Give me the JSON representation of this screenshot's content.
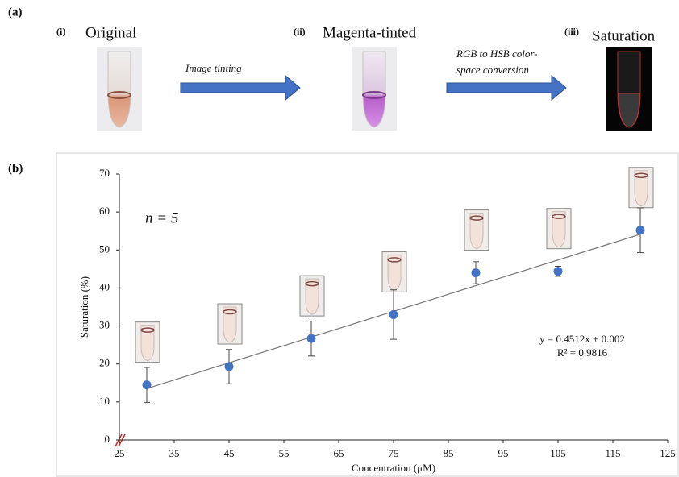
{
  "panel_a": {
    "label": "(a)",
    "steps": [
      {
        "index": "(i)",
        "title": "Original"
      },
      {
        "index": "(ii)",
        "title": "Magenta-tinted"
      },
      {
        "index": "(iii)",
        "title": "Saturation"
      }
    ],
    "arrows": [
      {
        "lines": [
          "Image tinting"
        ]
      },
      {
        "lines": [
          "RGB to HSB color-",
          "space conversion"
        ]
      }
    ]
  },
  "panel_b_label": "(b)",
  "chart_data": {
    "type": "scatter",
    "x_label": "Concentration (μM)",
    "y_label": "Saturation (%)",
    "annotation": "n = 5",
    "x": [
      30,
      45,
      60,
      75,
      90,
      105,
      120
    ],
    "values": [
      14.5,
      19.3,
      26.7,
      33.0,
      44.0,
      44.4,
      55.2
    ],
    "errors": [
      4.6,
      4.5,
      4.6,
      6.5,
      2.9,
      1.3,
      5.9
    ],
    "color": "#4472c4",
    "trendline": {
      "slope": 0.4512,
      "intercept": 0.002,
      "label": "y = 0.4512x + 0.002",
      "r2_label": "R² = 0.9816"
    },
    "xlim": [
      25,
      125
    ],
    "xticks": [
      25,
      35,
      45,
      55,
      65,
      75,
      85,
      95,
      105,
      115,
      125
    ],
    "ylim": [
      0,
      70
    ],
    "yticks": [
      0,
      10,
      20,
      30,
      40,
      50,
      60,
      70
    ]
  }
}
